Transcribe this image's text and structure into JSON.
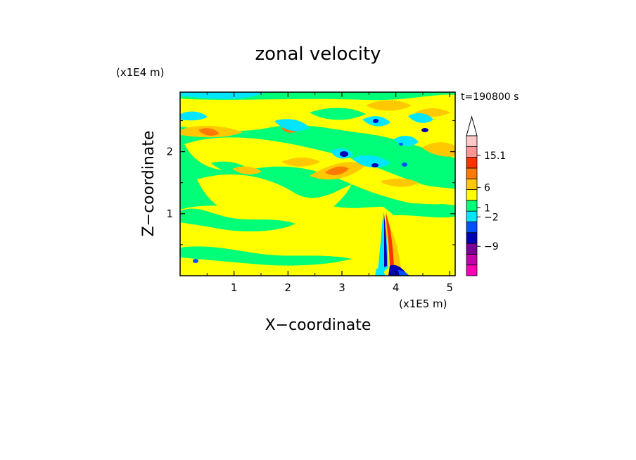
{
  "chart_data": {
    "type": "heatmap",
    "title": "zonal velocity",
    "xlabel": "X−coordinate",
    "ylabel": "Z−coordinate",
    "x_scale_label": "(x1E5 m)",
    "y_scale_label": "(x1E4 m)",
    "time_label": "t=190800 s",
    "xlim": [
      0,
      5.1
    ],
    "ylim": [
      0,
      2.96
    ],
    "x_ticks": [
      {
        "value": 1,
        "label": "1"
      },
      {
        "value": 2,
        "label": "2"
      },
      {
        "value": 3,
        "label": "3"
      },
      {
        "value": 4,
        "label": "4"
      },
      {
        "value": 5,
        "label": "5"
      }
    ],
    "y_ticks": [
      {
        "value": 1,
        "label": "1"
      },
      {
        "value": 2,
        "label": "2"
      }
    ],
    "colorbar": {
      "levels": [
        {
          "color": "#ff00b4"
        },
        {
          "color": "#c800aa"
        },
        {
          "color": "#780096"
        },
        {
          "color": "#0000b4"
        },
        {
          "color": "#0050ff"
        },
        {
          "color": "#00e6ff"
        },
        {
          "color": "#00ff78"
        },
        {
          "color": "#ffff00"
        },
        {
          "color": "#ffc800"
        },
        {
          "color": "#ff7800"
        },
        {
          "color": "#ff3200"
        },
        {
          "color": "#ff9696"
        },
        {
          "color": "#ffc8c8"
        }
      ],
      "labels": [
        {
          "text": "15.1",
          "position": 0.86
        },
        {
          "text": "6",
          "position": 0.63
        },
        {
          "text": "1",
          "position": 0.485
        },
        {
          "text": "−2",
          "position": 0.42
        },
        {
          "text": "−9",
          "position": 0.21
        }
      ]
    }
  }
}
